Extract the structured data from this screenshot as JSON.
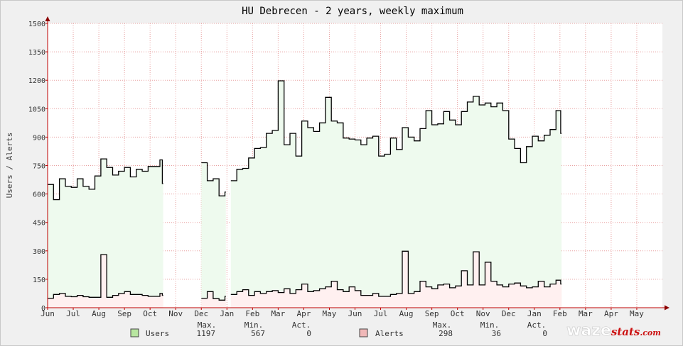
{
  "chart_data": {
    "type": "line",
    "title": "HU Debrecen - 2 years, weekly maximum",
    "xlabel": "",
    "ylabel": "Users / Alerts",
    "ylim": [
      0,
      1500
    ],
    "y_ticks": [
      0,
      150,
      300,
      450,
      600,
      750,
      900,
      1050,
      1200,
      1350,
      1500
    ],
    "x_ticks": [
      "Jun",
      "Jul",
      "Aug",
      "Sep",
      "Oct",
      "Nov",
      "Dec",
      "Jan",
      "Feb",
      "Mar",
      "Apr",
      "May",
      "Jun",
      "Jul",
      "Aug",
      "Sep",
      "Oct",
      "Nov",
      "Dec",
      "Jan",
      "Feb",
      "Mar",
      "Apr",
      "May"
    ],
    "x_unit": "weeks from start of Jun",
    "x_range": [
      0,
      104
    ],
    "grid": true,
    "legend_position": "bottom",
    "series": [
      {
        "name": "Users",
        "color": "#000000",
        "fill": "#eefaee",
        "swatch": "#b8e6a0",
        "max": "1197",
        "min": "567",
        "act": "0",
        "segments": [
          [
            [
              0,
              650
            ],
            [
              1,
              570
            ],
            [
              2,
              680
            ],
            [
              3,
              640
            ],
            [
              4,
              635
            ],
            [
              5,
              680
            ],
            [
              6,
              640
            ],
            [
              7,
              625
            ],
            [
              8,
              695
            ],
            [
              9,
              785
            ],
            [
              10,
              740
            ],
            [
              11,
              700
            ],
            [
              12,
              720
            ],
            [
              13,
              740
            ],
            [
              14,
              690
            ],
            [
              15,
              730
            ],
            [
              16,
              720
            ],
            [
              17,
              745
            ],
            [
              18,
              745
            ],
            [
              19,
              780
            ],
            [
              19.4,
              655
            ]
          ],
          [
            [
              26,
              765
            ],
            [
              27,
              670
            ],
            [
              28,
              680
            ],
            [
              29,
              590
            ],
            [
              30,
              610
            ]
          ],
          [
            [
              31,
              670
            ],
            [
              32,
              730
            ],
            [
              33,
              735
            ],
            [
              34,
              790
            ],
            [
              35,
              840
            ],
            [
              36,
              845
            ],
            [
              37,
              920
            ],
            [
              38,
              935
            ],
            [
              39,
              1197
            ],
            [
              40,
              860
            ],
            [
              41,
              920
            ],
            [
              42,
              800
            ],
            [
              43,
              985
            ],
            [
              44,
              950
            ],
            [
              45,
              930
            ],
            [
              46,
              975
            ],
            [
              47,
              1110
            ],
            [
              48,
              985
            ],
            [
              49,
              975
            ],
            [
              50,
              895
            ],
            [
              51,
              890
            ],
            [
              52,
              885
            ],
            [
              53,
              860
            ],
            [
              54,
              895
            ],
            [
              55,
              905
            ],
            [
              56,
              800
            ],
            [
              57,
              810
            ],
            [
              58,
              895
            ],
            [
              59,
              835
            ],
            [
              60,
              950
            ],
            [
              61,
              900
            ],
            [
              62,
              880
            ],
            [
              63,
              945
            ],
            [
              64,
              1040
            ],
            [
              65,
              965
            ],
            [
              66,
              970
            ],
            [
              67,
              1035
            ],
            [
              68,
              990
            ],
            [
              69,
              965
            ],
            [
              70,
              1035
            ],
            [
              71,
              1085
            ],
            [
              72,
              1115
            ],
            [
              73,
              1070
            ],
            [
              74,
              1080
            ],
            [
              75,
              1060
            ],
            [
              76,
              1080
            ],
            [
              77,
              1040
            ],
            [
              78,
              890
            ],
            [
              79,
              840
            ],
            [
              80,
              765
            ],
            [
              81,
              850
            ],
            [
              82,
              905
            ],
            [
              83,
              880
            ],
            [
              84,
              910
            ],
            [
              85,
              940
            ],
            [
              86,
              1040
            ],
            [
              86.8,
              920
            ]
          ]
        ]
      },
      {
        "name": "Alerts",
        "color": "#000000",
        "fill": "#fff0f0",
        "swatch": "#f0b8b8",
        "max": "298",
        "min": "36",
        "act": "0",
        "segments": [
          [
            [
              0,
              50
            ],
            [
              1,
              70
            ],
            [
              2,
              75
            ],
            [
              3,
              60
            ],
            [
              4,
              58
            ],
            [
              5,
              65
            ],
            [
              6,
              58
            ],
            [
              7,
              55
            ],
            [
              8,
              55
            ],
            [
              9,
              280
            ],
            [
              10,
              55
            ],
            [
              11,
              65
            ],
            [
              12,
              75
            ],
            [
              13,
              85
            ],
            [
              14,
              70
            ],
            [
              15,
              70
            ],
            [
              16,
              65
            ],
            [
              17,
              60
            ],
            [
              18,
              60
            ],
            [
              19,
              75
            ],
            [
              19.4,
              65
            ]
          ],
          [
            [
              26,
              50
            ],
            [
              27,
              85
            ],
            [
              28,
              48
            ],
            [
              29,
              40
            ],
            [
              30,
              60
            ]
          ],
          [
            [
              31,
              70
            ],
            [
              32,
              85
            ],
            [
              33,
              95
            ],
            [
              34,
              65
            ],
            [
              35,
              85
            ],
            [
              36,
              75
            ],
            [
              37,
              85
            ],
            [
              38,
              90
            ],
            [
              39,
              80
            ],
            [
              40,
              100
            ],
            [
              41,
              75
            ],
            [
              42,
              95
            ],
            [
              43,
              125
            ],
            [
              44,
              85
            ],
            [
              45,
              90
            ],
            [
              46,
              100
            ],
            [
              47,
              110
            ],
            [
              48,
              140
            ],
            [
              49,
              95
            ],
            [
              50,
              85
            ],
            [
              51,
              110
            ],
            [
              52,
              90
            ],
            [
              53,
              65
            ],
            [
              54,
              65
            ],
            [
              55,
              75
            ],
            [
              56,
              60
            ],
            [
              57,
              60
            ],
            [
              58,
              70
            ],
            [
              59,
              75
            ],
            [
              60,
              298
            ],
            [
              61,
              75
            ],
            [
              62,
              85
            ],
            [
              63,
              140
            ],
            [
              64,
              110
            ],
            [
              65,
              100
            ],
            [
              66,
              120
            ],
            [
              67,
              125
            ],
            [
              68,
              105
            ],
            [
              69,
              115
            ],
            [
              70,
              195
            ],
            [
              71,
              120
            ],
            [
              72,
              295
            ],
            [
              73,
              120
            ],
            [
              74,
              240
            ],
            [
              75,
              140
            ],
            [
              76,
              120
            ],
            [
              77,
              110
            ],
            [
              78,
              125
            ],
            [
              79,
              130
            ],
            [
              80,
              115
            ],
            [
              81,
              105
            ],
            [
              82,
              110
            ],
            [
              83,
              140
            ],
            [
              84,
              110
            ],
            [
              85,
              125
            ],
            [
              86,
              145
            ],
            [
              86.8,
              125
            ]
          ]
        ]
      }
    ]
  },
  "legend": {
    "headers": [
      "Max.",
      "Min.",
      "Act."
    ]
  },
  "branding": {
    "part1": "waze",
    "part2": "stats",
    "part3": ".com"
  }
}
